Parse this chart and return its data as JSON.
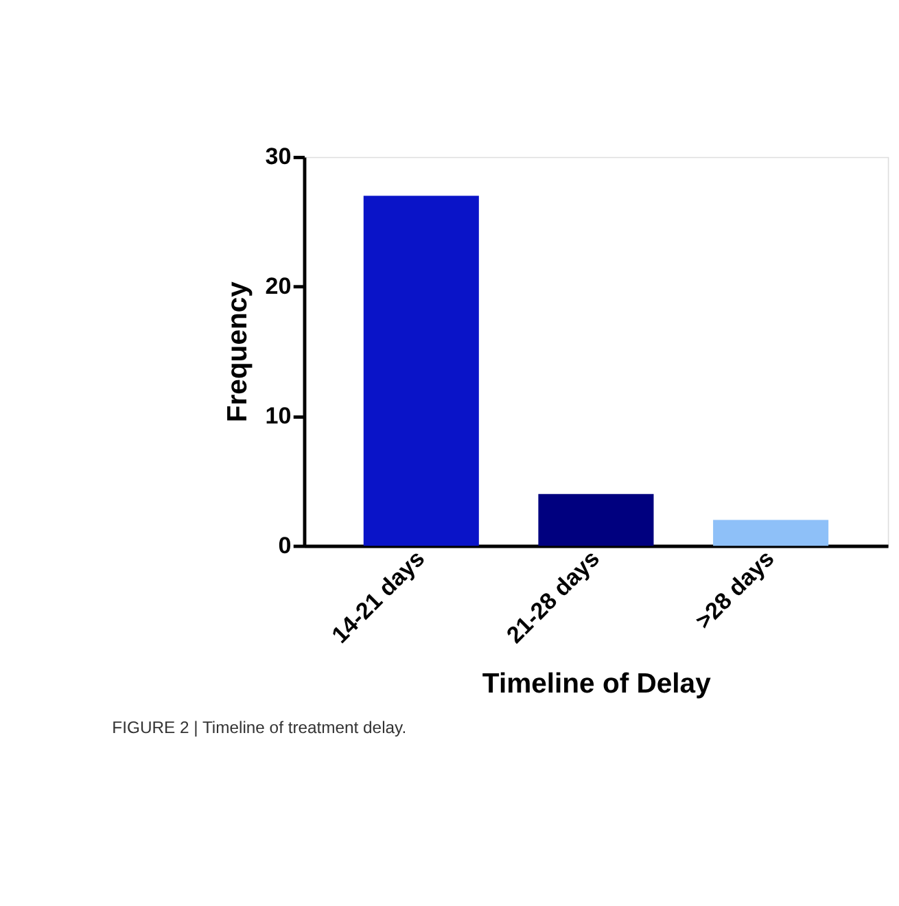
{
  "chart_data": {
    "type": "bar",
    "xlabel": "Timeline of Delay",
    "ylabel": "Frequency",
    "categories": [
      "14-21 days",
      "21-28 days",
      ">28 days"
    ],
    "values": [
      27,
      4,
      2
    ],
    "colors": [
      "#0a14c8",
      "#00007f",
      "#8ec0f8"
    ],
    "ylim": [
      0,
      30
    ],
    "yticks": [
      0,
      10,
      20,
      30
    ],
    "grid": false,
    "legend": false,
    "annotations": [
      "FIGURE 2 | Timeline of treatment delay."
    ]
  }
}
